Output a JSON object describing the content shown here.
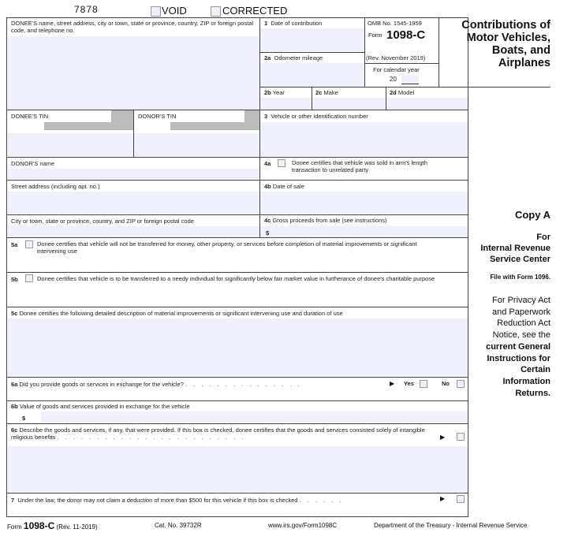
{
  "header": {
    "form_code": "7878",
    "void_label": "VOID",
    "corrected_label": "CORRECTED"
  },
  "donee": {
    "label": "DONEE'S name, street address, city or town, state or province, country, ZIP or foreign postal code, and telephone no.",
    "tin_label": "DONEE'S TIN"
  },
  "donor": {
    "tin_label": "DONOR'S TIN",
    "name_label": "DONOR'S name",
    "street_label": "Street address (including apt. no.)",
    "city_label": "City or town, state or province, country, and ZIP or foreign postal code"
  },
  "boxes": {
    "b1": {
      "num": "1",
      "label": "Date of contribution"
    },
    "b2a": {
      "num": "2a",
      "label": "Odometer mileage"
    },
    "b2b": {
      "num": "2b",
      "label": "Year"
    },
    "b2c": {
      "num": "2c",
      "label": "Make"
    },
    "b2d": {
      "num": "2d",
      "label": "Model"
    },
    "b3": {
      "num": "3",
      "label": "Vehicle or other identification number"
    },
    "b4a": {
      "num": "4a",
      "label": "Donee certifies that vehicle was sold in arm's length transaction to unrelated party"
    },
    "b4b": {
      "num": "4b",
      "label": "Date of sale"
    },
    "b4c": {
      "num": "4c",
      "label": "Gross proceeds from sale (see instructions)",
      "currency": "$"
    },
    "b5a": {
      "num": "5a",
      "label": "Donee certifies that vehicle will not be transferred for money, other property, or services before completion of material improvements or significant intervening use"
    },
    "b5b": {
      "num": "5b",
      "label": "Donee certifies that vehicle is to be transferred to a needy individual for significantly below fair market value in furtherance of donee's charitable purpose"
    },
    "b5c": {
      "num": "5c",
      "label": "Donee certifies the following detailed description of material improvements or significant intervening use and duration of use"
    },
    "b6a": {
      "num": "6a",
      "label": "Did you provide goods or services in exchange for the vehicle?",
      "yes": "Yes",
      "no": "No"
    },
    "b6b": {
      "num": "6b",
      "label": "Value of goods and services provided in exchange for the vehicle",
      "currency": "$"
    },
    "b6c": {
      "num": "6c",
      "label": "Describe the goods and services, if any, that were provided. If this box is checked, donee certifies that the goods and services consisted solely of intangible religious benefits"
    },
    "b7": {
      "num": "7",
      "label": "Under the law, the donor may not claim a deduction of more than $500 for this vehicle if this box is checked"
    }
  },
  "omb": {
    "omb_no": "OMB No. 1545-1959",
    "form_prefix": "Form",
    "form_name": "1098-C",
    "rev": "(Rev. November 2019)",
    "cal_year_label": "For calendar year",
    "year_prefix": "20"
  },
  "title": {
    "line1": "Contributions of",
    "line2": "Motor Vehicles,",
    "line3": "Boats, and",
    "line4": "Airplanes"
  },
  "side": {
    "copy": "Copy A",
    "for": "For",
    "irs1": "Internal Revenue",
    "irs2": "Service Center",
    "file_with": "File with Form 1096.",
    "privacy1": "For Privacy Act",
    "privacy2": "and Paperwork",
    "privacy3": "Reduction Act",
    "privacy4": "Notice, see the",
    "bold1": "current General",
    "bold2": "Instructions for",
    "bold3": "Certain",
    "bold4": "Information",
    "bold5": "Returns."
  },
  "footer": {
    "form_prefix": "Form",
    "form_name": "1098-C",
    "rev": "(Rev. 11-2019)",
    "cat": "Cat. No. 39732R",
    "url": "www.irs.gov/Form1098C",
    "dept": "Department of the Treasury - Internal Revenue Service"
  },
  "arrow": "▶",
  "colors": {
    "field_fill": "#eef1fb",
    "border": "#444444"
  }
}
